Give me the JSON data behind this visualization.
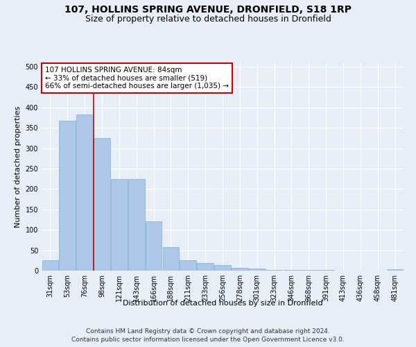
{
  "title": "107, HOLLINS SPRING AVENUE, DRONFIELD, S18 1RP",
  "subtitle": "Size of property relative to detached houses in Dronfield",
  "xlabel": "Distribution of detached houses by size in Dronfield",
  "ylabel": "Number of detached properties",
  "categories": [
    "31sqm",
    "53sqm",
    "76sqm",
    "98sqm",
    "121sqm",
    "143sqm",
    "166sqm",
    "188sqm",
    "211sqm",
    "233sqm",
    "256sqm",
    "278sqm",
    "301sqm",
    "323sqm",
    "346sqm",
    "368sqm",
    "391sqm",
    "413sqm",
    "436sqm",
    "458sqm",
    "481sqm"
  ],
  "values": [
    25,
    368,
    383,
    325,
    225,
    225,
    120,
    58,
    25,
    18,
    14,
    7,
    5,
    2,
    2,
    1,
    1,
    0,
    0,
    0,
    4
  ],
  "bar_color": "#aec6e8",
  "bar_edge_color": "#7bafd4",
  "property_line_x": 2.5,
  "annotation_text": "107 HOLLINS SPRING AVENUE: 84sqm\n← 33% of detached houses are smaller (519)\n66% of semi-detached houses are larger (1,035) →",
  "annotation_box_color": "#ffffff",
  "annotation_box_edge_color": "#cc0000",
  "vline_color": "#cc0000",
  "footer_line1": "Contains HM Land Registry data © Crown copyright and database right 2024.",
  "footer_line2": "Contains public sector information licensed under the Open Government Licence v3.0.",
  "ylim": [
    0,
    510
  ],
  "yticks": [
    0,
    50,
    100,
    150,
    200,
    250,
    300,
    350,
    400,
    450,
    500
  ],
  "bg_color": "#e8eef8",
  "grid_color": "#ffffff",
  "title_fontsize": 10,
  "subtitle_fontsize": 9,
  "axis_label_fontsize": 8,
  "tick_fontsize": 7,
  "footer_fontsize": 6.5,
  "annotation_fontsize": 7.5
}
